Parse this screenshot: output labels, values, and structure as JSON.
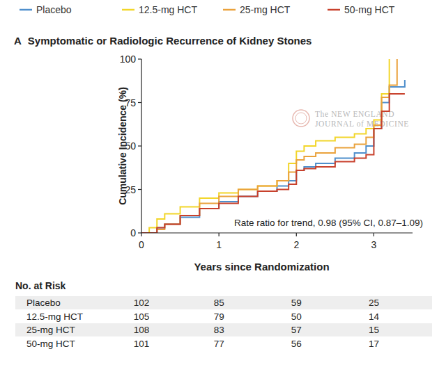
{
  "chart_data": {
    "type": "step",
    "panel": "A",
    "title": "Symptomatic or Radiologic Recurrence of Kidney Stones",
    "x_label": "Years since Randomization",
    "y_label": "Cumulative Incidence (%)",
    "annotation": "Rate ratio for trend, 0.98 (95% CI, 0.87–1.09)",
    "watermark": [
      "The NEW ENGLAND",
      "JOURNAL of MEDICINE"
    ],
    "legend": "top",
    "grid": false,
    "xlim": [
      0,
      3.5
    ],
    "ylim": [
      0,
      100
    ],
    "xticks": [
      0,
      1,
      2,
      3
    ],
    "yticks": [
      0,
      25,
      50,
      75,
      100
    ],
    "x": [
      0,
      0.1,
      0.2,
      0.3,
      0.5,
      0.75,
      1,
      1.25,
      1.5,
      1.75,
      1.9,
      2,
      2.1,
      2.25,
      2.5,
      2.75,
      2.9,
      3,
      3.1,
      3.2,
      3.3,
      3.4
    ],
    "series": [
      {
        "name": "Placebo",
        "color": "#4f8fcc",
        "values": [
          0,
          0,
          3,
          5,
          9,
          14,
          18,
          21,
          24,
          27,
          30,
          36,
          38,
          40,
          43,
          46,
          50,
          60,
          75,
          84,
          84,
          88
        ]
      },
      {
        "name": "12.5-mg HCT",
        "color": "#f2d62a",
        "values": [
          0,
          3,
          8,
          11,
          15,
          20,
          23,
          25,
          27,
          30,
          40,
          47,
          50,
          53,
          55,
          57,
          60,
          65,
          80,
          100,
          null,
          null
        ]
      },
      {
        "name": "25-mg HCT",
        "color": "#eaa23c",
        "values": [
          0,
          0,
          2,
          5,
          10,
          17,
          21,
          25,
          27,
          30,
          35,
          42,
          44,
          46,
          49,
          51,
          55,
          62,
          78,
          85,
          100,
          null
        ]
      },
      {
        "name": "50-mg HCT",
        "color": "#c8412c",
        "values": [
          0,
          0,
          3,
          5,
          10,
          14,
          17,
          21,
          24,
          25,
          28,
          36,
          37,
          38,
          41,
          43,
          45,
          60,
          70,
          80,
          80,
          80
        ]
      }
    ],
    "risk_table": {
      "title": "No. at Risk",
      "rows": [
        {
          "name": "Placebo",
          "values": [
            102,
            85,
            59,
            25
          ]
        },
        {
          "name": "12.5-mg HCT",
          "values": [
            105,
            79,
            50,
            14
          ]
        },
        {
          "name": "25-mg HCT",
          "values": [
            108,
            83,
            57,
            15
          ]
        },
        {
          "name": "50-mg HCT",
          "values": [
            101,
            77,
            56,
            17
          ]
        }
      ]
    }
  }
}
